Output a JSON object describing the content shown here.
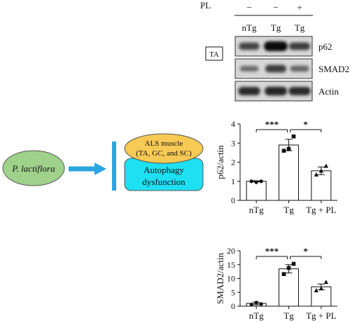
{
  "schematic": {
    "plant_label": "P. lactiflora",
    "plant_color": "#9fd18b",
    "arrow_color": "#2aa6e0",
    "ellipse_lines": [
      "ALS muscle",
      "(TA, GC, and SC)"
    ],
    "ellipse_color": "#f7c955",
    "box_lines": [
      "Autophagy",
      "dysfunction"
    ],
    "box_color": "#1fe0f2"
  },
  "blot": {
    "pl_label": "PL",
    "pl_signs": [
      "−",
      "−",
      "+"
    ],
    "lanes": [
      "nTg",
      "Tg",
      "Tg"
    ],
    "tissue_label": "TA",
    "bands": [
      {
        "name": "p62",
        "intensity": [
          0.55,
          1.0,
          0.6
        ]
      },
      {
        "name": "SMAD2",
        "intensity": [
          0.25,
          0.6,
          0.3
        ]
      },
      {
        "name": "Actin",
        "intensity": [
          0.75,
          0.8,
          0.75
        ]
      }
    ]
  },
  "chart_data": [
    {
      "type": "bar",
      "categories": [
        "nTg",
        "Tg",
        "Tg + PL"
      ],
      "values": [
        1.0,
        2.9,
        1.55
      ],
      "errors": [
        0.03,
        0.3,
        0.2
      ],
      "points": [
        [
          1.0,
          0.95,
          1.0
        ],
        [
          2.6,
          2.7,
          3.35
        ],
        [
          1.35,
          1.55,
          1.8
        ]
      ],
      "markers": [
        "circle",
        "square",
        "triangle"
      ],
      "ylabel": "p62/actin",
      "ylim": [
        0,
        4
      ],
      "yticks": [
        "0",
        "1",
        "2",
        "3",
        "4"
      ],
      "significance": [
        {
          "from": 0,
          "to": 1,
          "label": "***"
        },
        {
          "from": 1,
          "to": 2,
          "label": "*"
        }
      ]
    },
    {
      "type": "bar",
      "categories": [
        "nTg",
        "Tg",
        "Tg + PL"
      ],
      "values": [
        1.0,
        13.5,
        7.0
      ],
      "errors": [
        0.5,
        1.5,
        1.0
      ],
      "points": [
        [
          0.6,
          1.3,
          0.8
        ],
        [
          11.6,
          13.8,
          15.3
        ],
        [
          5.7,
          6.4,
          8.7
        ]
      ],
      "markers": [
        "circle",
        "square",
        "triangle"
      ],
      "ylabel": "SMAD2/actin",
      "ylim": [
        0,
        20
      ],
      "yticks": [
        "0",
        "5",
        "10",
        "15",
        "20"
      ],
      "significance": [
        {
          "from": 0,
          "to": 1,
          "label": "***"
        },
        {
          "from": 1,
          "to": 2,
          "label": "*"
        }
      ]
    }
  ]
}
